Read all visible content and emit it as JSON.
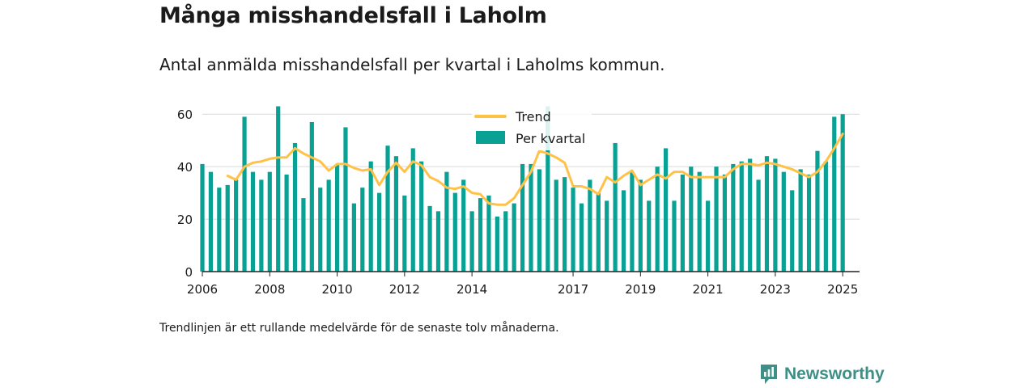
{
  "title": "Många misshandelsfall i Laholm",
  "subtitle": "Antal anmälda misshandelsfall per kvartal i Laholms kommun.",
  "footnote": "Trendlinjen är ett rullande medelvärde för de senaste tolv månaderna.",
  "brand": {
    "name": "Newsworthy",
    "icon": "newsworthy-logo-icon"
  },
  "colors": {
    "bars": "#0aa195",
    "trend": "#ffc247",
    "grid": "#d9d9d9",
    "axis": "#222222"
  },
  "chart_data": {
    "type": "bar",
    "x_unit": "year-quarter",
    "xlim": [
      2006,
      2025.5
    ],
    "ylim": [
      0,
      65
    ],
    "grid": true,
    "legend_position": "top-center",
    "yticks": [
      0,
      20,
      40,
      60
    ],
    "xticks": [
      "2006",
      "2008",
      "2010",
      "2012",
      "2014",
      "2017",
      "2019",
      "2021",
      "2023",
      "2025"
    ],
    "series": [
      {
        "name": "Trend",
        "kind": "line",
        "start_quarter": "2006 Q4",
        "values": [
          36.5,
          35,
          40,
          41.5,
          42,
          43,
          43.5,
          43.5,
          47,
          45,
          43.5,
          42,
          38.5,
          41,
          41,
          39.5,
          38.5,
          39,
          33,
          38,
          41.5,
          38,
          42,
          40.5,
          36,
          34.5,
          32,
          31.5,
          32.5,
          30,
          29.5,
          26,
          25.5,
          25.5,
          28,
          33,
          38,
          46,
          45,
          43.5,
          41.5,
          32.5,
          32.5,
          31.5,
          29.5,
          36,
          34,
          36.5,
          38.5,
          33,
          35,
          37,
          35.5,
          38,
          38,
          36,
          36,
          36,
          36,
          36,
          39,
          41,
          41,
          40.5,
          41.5,
          41,
          40,
          39,
          37.5,
          36,
          38,
          42,
          47,
          52.5
        ]
      },
      {
        "name": "Per kvartal",
        "kind": "bar",
        "start_quarter": "2006 Q1",
        "values": [
          41,
          38,
          32,
          33,
          35,
          59,
          38,
          35,
          38,
          63,
          37,
          49,
          28,
          57,
          32,
          35,
          41,
          55,
          26,
          32,
          42,
          30,
          48,
          44,
          29,
          47,
          42,
          25,
          23,
          38,
          30,
          35,
          23,
          28,
          29,
          21,
          23,
          26,
          41,
          41,
          39,
          63,
          35,
          36,
          32,
          26,
          35,
          30,
          27,
          49,
          31,
          38,
          35,
          27,
          40,
          47,
          27,
          37,
          40,
          38,
          27,
          40,
          37,
          41,
          42,
          43,
          35,
          44,
          43,
          38,
          31,
          39,
          37,
          46,
          42,
          59,
          60
        ]
      }
    ]
  }
}
